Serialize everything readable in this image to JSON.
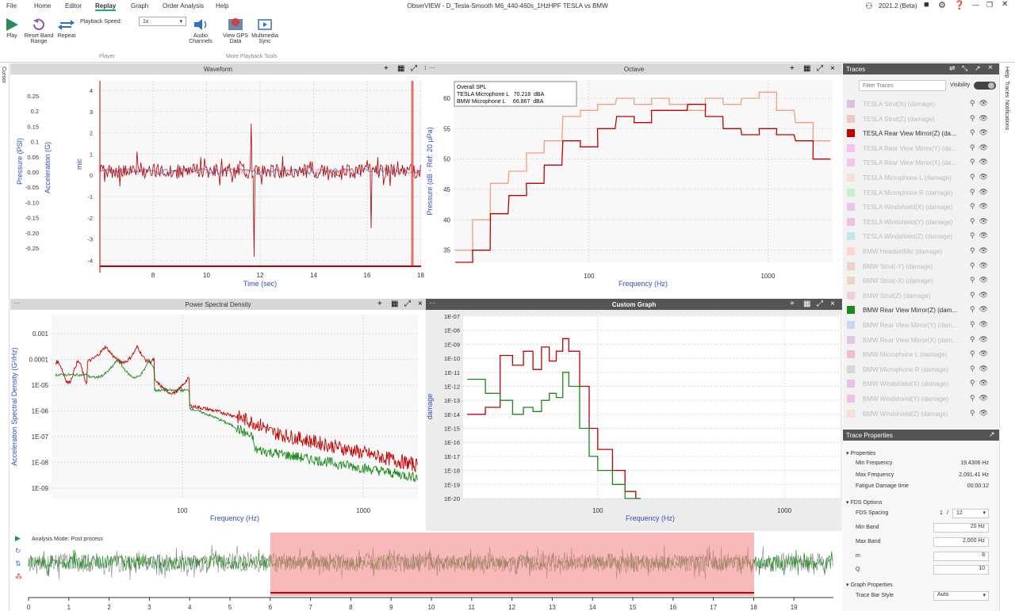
{
  "app": {
    "title": "ObserVIEW - D_Tesla-Smooth M6_440-460s_1HzHPF TESLA vs BMW",
    "version": "2021.2 (Beta)"
  },
  "menu": [
    "File",
    "Home",
    "Editor",
    "Replay",
    "Graph",
    "Order Analysis",
    "Help"
  ],
  "ribbon": {
    "play": "Play",
    "reset": "Reset Band Range",
    "repeat": "Repeat",
    "speed_label": "Playback Speed:",
    "speed_value": "1x",
    "audio": "Audio Channels",
    "gps": "View GPS Data",
    "mm": "Multimedia Sync",
    "group_player": "Player",
    "group_more": "More Playback Tools"
  },
  "left_tab": "Cursor",
  "right_tabs": [
    "Help",
    "Traces",
    "Notifications"
  ],
  "waveform": {
    "title": "Waveform",
    "xlabel": "Time (sec)",
    "ylabel1": "Pressure (PSI)",
    "ylabel2": "Acceleration (G)",
    "ylabel3": "mic",
    "yticks1": [
      "0.25",
      "0.2",
      "0.15",
      "0.1",
      "0.05",
      "0.00",
      "-0.05",
      "-0.10",
      "-0.15",
      "-0.20",
      "-0.25"
    ],
    "yticks2": [
      "4",
      "3",
      "2",
      "1",
      "0",
      "-1",
      "-2",
      "-3",
      "-4"
    ],
    "xticks": [
      "8",
      "10",
      "12",
      "14",
      "16",
      "18"
    ]
  },
  "octave": {
    "title": "Octave",
    "xlabel": "Frequency (Hz)",
    "ylabel": "Pressure (dB - Ref: 20 µPa)",
    "yticks": [
      "60",
      "55",
      "50",
      "45",
      "40",
      "35"
    ],
    "xticks": [
      "100",
      "1000"
    ],
    "legend": [
      "Overall SPL",
      "TESLA Microphone L   70.218  dBA",
      "BMW Microphone L     66.867  dBA"
    ]
  },
  "psd": {
    "title": "Power Spectral Density",
    "xlabel": "Frequency (Hz)",
    "ylabel": "Acceleration Spectral Density (G²/Hz)",
    "yticks": [
      "0.001",
      "0.0001",
      "1E-05",
      "1E-06",
      "1E-07",
      "1E-08",
      "1E-09"
    ],
    "xticks": [
      "100",
      "1000"
    ]
  },
  "custom": {
    "title": "Custom Graph",
    "xlabel": "Frequency (Hz)",
    "ylabel": "damage",
    "yticks": [
      "1E-07",
      "1E-08",
      "1E-09",
      "1E-10",
      "1E-11",
      "1E-12",
      "1E-13",
      "1E-14",
      "1E-15",
      "1E-16",
      "1E-17",
      "1E-18",
      "1E-19",
      "1E-20"
    ],
    "xticks": [
      "100",
      "1000"
    ]
  },
  "overview": {
    "mode": "Analysis Mode: Post process",
    "xticks": [
      "0",
      "1",
      "2",
      "3",
      "4",
      "5",
      "6",
      "7",
      "8",
      "9",
      "10",
      "11",
      "12",
      "13",
      "14",
      "15",
      "16",
      "17",
      "18",
      "19"
    ]
  },
  "traces": {
    "title": "Traces",
    "filter_placeholder": "Filter Traces",
    "visibility": "Visibility",
    "items": [
      {
        "name": "TESLA Strut(X) (damage)",
        "color": "#e0c0e0",
        "visible": false
      },
      {
        "name": "TESLA Strut(Z) (damage)",
        "color": "#f0c8c8",
        "visible": false
      },
      {
        "name": "TESLA Rear View Mirror(Z) (da...",
        "color": "#c00000",
        "visible": true
      },
      {
        "name": "TESLA Rear View Mirror(Y) (da...",
        "color": "#f8c0f0",
        "visible": false
      },
      {
        "name": "TESLA Rear View Mirror(X) (da...",
        "color": "#f0c8e8",
        "visible": false
      },
      {
        "name": "TESLA Microphone L (damage)",
        "color": "#f8e0d8",
        "visible": false
      },
      {
        "name": "TESLA Microphone R (damage)",
        "color": "#c8f0c8",
        "visible": false
      },
      {
        "name": "TESLA Windshield(X) (damage)",
        "color": "#e8c8e8",
        "visible": false
      },
      {
        "name": "TESLA Windshield(Y) (damage)",
        "color": "#f0c0e0",
        "visible": false
      },
      {
        "name": "TESLA Windshield(Z) (damage)",
        "color": "#c0e8e8",
        "visible": false
      },
      {
        "name": "BMW HeadsetMic (damage)",
        "color": "#f8d8d0",
        "visible": false
      },
      {
        "name": "BMW Strut(-Y) (damage)",
        "color": "#f0d0d0",
        "visible": false
      },
      {
        "name": "BMW Strut(-X) (damage)",
        "color": "#e8d8c0",
        "visible": false
      },
      {
        "name": "BMW Strut(Z) (damage)",
        "color": "#f0d0e0",
        "visible": false
      },
      {
        "name": "BMW Rear View Mirror(Z) (dam...",
        "color": "#1a8a1a",
        "visible": true
      },
      {
        "name": "BMW Rear View Mirror(Y) (dam...",
        "color": "#c8d8f0",
        "visible": false
      },
      {
        "name": "BMW Rear View Mirror(X) (dam...",
        "color": "#e0c8e0",
        "visible": false
      },
      {
        "name": "BMW Microphone L (damage)",
        "color": "#f0c0c0",
        "visible": false
      },
      {
        "name": "BMW Microphone R (damage)",
        "color": "#d8d8d8",
        "visible": false
      },
      {
        "name": "BMW Windshield(X) (damage)",
        "color": "#e8c0e8",
        "visible": false
      },
      {
        "name": "BMW Windshield(Y) (damage)",
        "color": "#f0c0e8",
        "visible": false
      },
      {
        "name": "BMW Windshield(Z) (damage)",
        "color": "#f8e0d8",
        "visible": false
      }
    ]
  },
  "props": {
    "title": "Trace Properties",
    "section1": "Properties",
    "min_freq_label": "Min Frequency",
    "min_freq": "19.4306 Hz",
    "max_freq_label": "Max Frequency",
    "max_freq": "2,091.41 Hz",
    "fdt_label": "Fatigue Damage time",
    "fdt": "00:00:12",
    "section2": "FDS Options",
    "spacing_label": "FDS Spacing",
    "spacing_a": "1",
    "spacing_b": "12",
    "minband_label": "Min Band",
    "minband": "20",
    "maxband_label": "Max Band",
    "maxband": "2,000",
    "hz": "Hz",
    "m_label": "m",
    "m": "8",
    "q_label": "Q",
    "q": "10",
    "section3": "Graph Properties",
    "tbs_label": "Trace Bar Style",
    "tbs": "Auto"
  },
  "chart_data": [
    {
      "type": "line",
      "title": "Octave",
      "xlabel": "Frequency (Hz)",
      "ylabel": "Pressure (dB - Ref: 20 µPa)",
      "x_scale": "log",
      "ylim": [
        33,
        63
      ],
      "series": [
        {
          "name": "TESLA Microphone L",
          "color": "#f0a080",
          "x": [
            20,
            25,
            31.5,
            40,
            50,
            63,
            80,
            100,
            125,
            160,
            200,
            250,
            315,
            400,
            500,
            630,
            800,
            1000,
            1250,
            1600,
            2000
          ],
          "y": [
            35,
            40,
            46,
            48,
            51,
            53,
            57,
            58,
            59,
            60,
            59,
            60,
            59,
            58,
            60,
            59,
            60,
            61,
            58,
            56,
            53
          ]
        },
        {
          "name": "BMW Microphone L",
          "color": "#c00000",
          "x": [
            20,
            25,
            31.5,
            40,
            50,
            63,
            80,
            100,
            125,
            160,
            200,
            250,
            315,
            400,
            500,
            630,
            800,
            1000,
            1250,
            1600,
            2000
          ],
          "y": [
            33,
            35,
            41,
            44,
            46,
            49,
            53,
            52,
            55,
            57,
            56,
            58,
            58,
            59,
            57,
            55,
            54,
            55,
            54,
            53,
            50
          ]
        }
      ]
    },
    {
      "type": "line",
      "title": "Custom Graph",
      "xlabel": "Frequency (Hz)",
      "ylabel": "damage",
      "x_scale": "log",
      "y_scale": "log",
      "series": [
        {
          "name": "TESLA Rear View Mirror(Z) (damage)",
          "color": "#c00000",
          "x": [
            20,
            25,
            30,
            35,
            40,
            45,
            50,
            55,
            60,
            65,
            70,
            80,
            90,
            100,
            120,
            140,
            160
          ],
          "y": [
            -14,
            -13.5,
            -9.8,
            -10.5,
            -9.5,
            -10.8,
            -9.2,
            -10.2,
            -9.5,
            -8.6,
            -9.5,
            -12,
            -15,
            -16.5,
            -18,
            -19.5,
            -20
          ]
        },
        {
          "name": "BMW Rear View Mirror(Z) (damage)",
          "color": "#1a8a1a",
          "x": [
            20,
            25,
            30,
            35,
            40,
            45,
            50,
            55,
            60,
            65,
            70,
            80,
            90,
            100,
            120,
            140,
            160
          ],
          "y": [
            -11.5,
            -12.5,
            -13,
            -14,
            -13.5,
            -13.8,
            -13,
            -12.5,
            -12.8,
            -11,
            -12,
            -15,
            -17,
            -18,
            -19,
            -20,
            -20
          ]
        }
      ]
    }
  ]
}
